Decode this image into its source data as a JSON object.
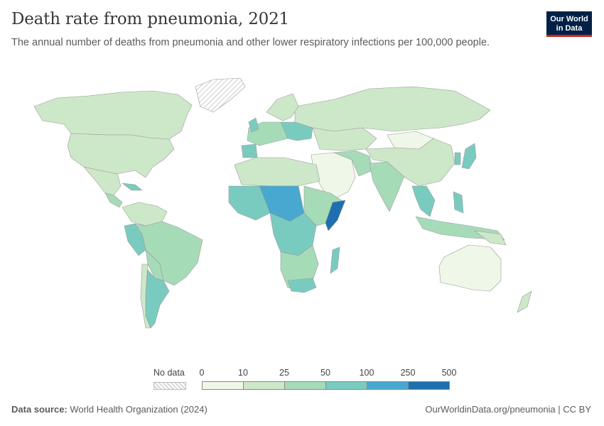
{
  "header": {
    "title": "Death rate from pneumonia, 2021",
    "subtitle": "The annual number of deaths from pneumonia and other lower respiratory infections per 100,000 people.",
    "logo_line1": "Our World",
    "logo_line2": "in Data"
  },
  "legend": {
    "no_data_label": "No data",
    "ticks": [
      "0",
      "10",
      "25",
      "50",
      "100",
      "250",
      "500"
    ],
    "colors": [
      "#eff8e8",
      "#cde8c8",
      "#a6dbb8",
      "#7acbbf",
      "#48a8cf",
      "#1f6fb0"
    ]
  },
  "footer": {
    "source_label": "Data source:",
    "source_value": "World Health Organization (2024)",
    "credit": "OurWorldinData.org/pneumonia | CC BY"
  },
  "colors": {
    "no_data": "#e6e6e6",
    "border": "#9a9a9a"
  }
}
